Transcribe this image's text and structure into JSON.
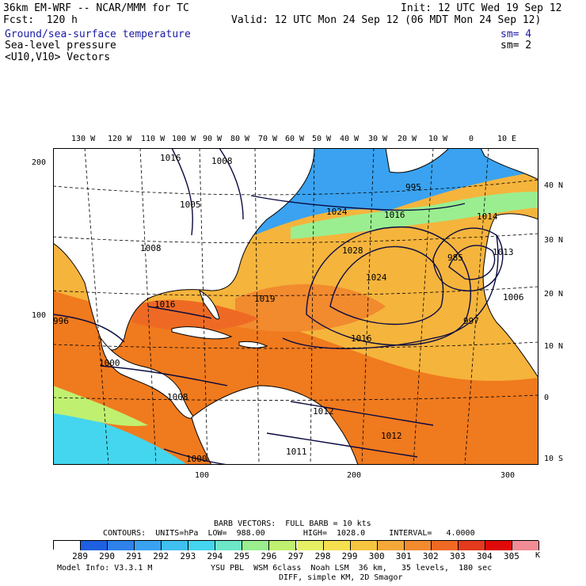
{
  "header": {
    "title": "36km EM-WRF -- NCAR/MMM for TC",
    "init": "Init: 12 UTC Wed 19 Sep 12",
    "fcst": "Fcst:  120 h",
    "valid": "Valid: 12 UTC Mon 24 Sep 12 (06 MDT Mon 24 Sep 12)"
  },
  "fields": [
    {
      "label": "Ground/sea-surface temperature",
      "sm": "sm= 4",
      "color": "#1a1aa6"
    },
    {
      "label": "Sea-level pressure",
      "sm": "sm= 2",
      "color": "#000000"
    },
    {
      "label": "<U10,V10> Vectors",
      "sm": "",
      "color": "#000000"
    }
  ],
  "map": {
    "lon_labels": [
      "130 W",
      "120 W",
      "110 W",
      "100 W",
      "90 W",
      "80 W",
      "70 W",
      "60 W",
      "50 W",
      "40 W",
      "30 W",
      "20 W",
      "10 W",
      "0",
      "10 E"
    ],
    "lat_labels": [
      "40 N",
      "30 N",
      "20 N",
      "10 N",
      "0",
      "10 S"
    ],
    "grid_x_labels": [
      "100",
      "200",
      "300"
    ],
    "grid_y_labels": [
      "200",
      "100"
    ],
    "isobar_labels": [
      "1016",
      "1008",
      "1005",
      "1008",
      "1024",
      "1016",
      "1028",
      "1024",
      "985",
      "1014",
      "1013",
      "1006",
      "997",
      "1019",
      "1016",
      "996",
      "1016",
      "1000",
      "1008",
      "1012",
      "1012",
      "1011",
      "1000",
      "995"
    ],
    "colors": {
      "land": "#ffffff",
      "ocean_warm": "#f07a1e",
      "ocean_mid": "#f5b43c",
      "ocean_cool": "#2f7de0"
    }
  },
  "footer": {
    "barb": "BARB VECTORS:  FULL BARB = 10 kts",
    "contours": "CONTOURS:  UNITS=hPa  LOW=  988.00        HIGH=  1028.0     INTERVAL=   4.0000",
    "unit": "K",
    "model_info": "Model Info: V3.3.1 M",
    "physics": "YSU PBL  WSM 6class  Noah LSM  36 km,   35 levels,  180 sec",
    "diff": "DIFF, simple KM, 2D Smagor"
  },
  "colorbar": {
    "labels": [
      "289",
      "290",
      "291",
      "292",
      "293",
      "294",
      "295",
      "296",
      "297",
      "298",
      "299",
      "300",
      "301",
      "302",
      "303",
      "304",
      "305"
    ],
    "colors": [
      "#ffffff",
      "#1e60e0",
      "#2e82ea",
      "#3aa2f0",
      "#40c0f0",
      "#44d6ee",
      "#6ee6c8",
      "#9aee90",
      "#c0f070",
      "#e6f064",
      "#f6e050",
      "#f6c640",
      "#f5a83a",
      "#f28a2e",
      "#ee6a24",
      "#e43a1e",
      "#e00a0a",
      "#f08c96"
    ]
  }
}
